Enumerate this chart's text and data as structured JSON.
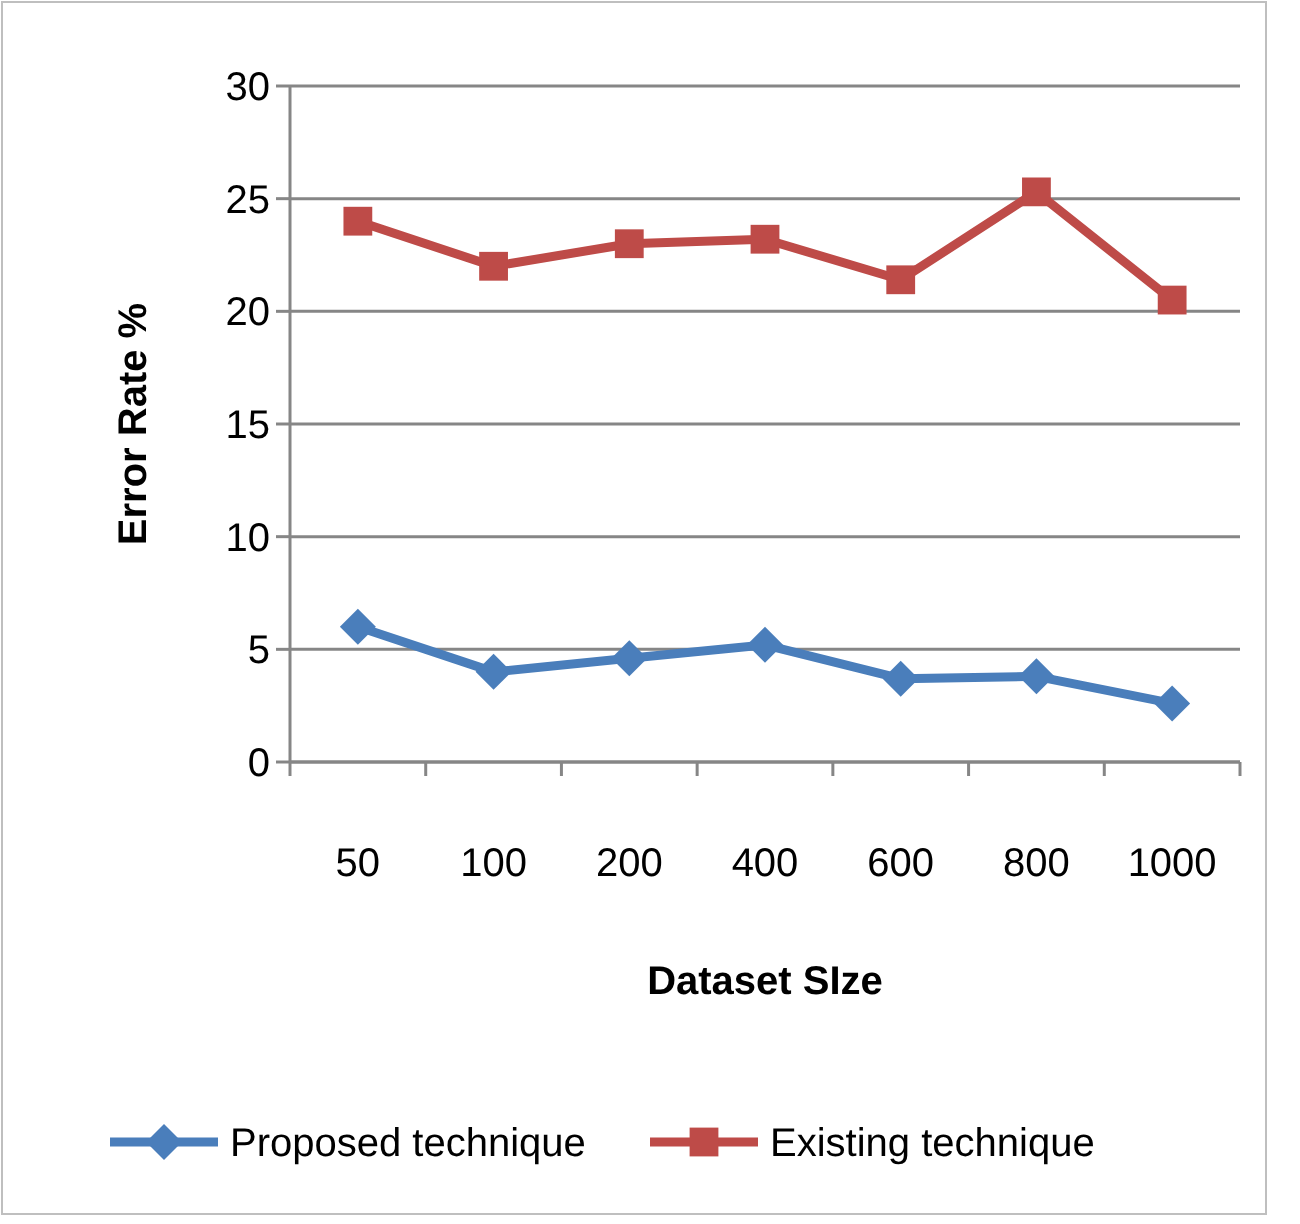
{
  "chart_data": {
    "type": "line",
    "xlabel": "Dataset SIze",
    "ylabel": "Error Rate %",
    "categories": [
      "50",
      "100",
      "200",
      "400",
      "600",
      "800",
      "1000"
    ],
    "series": [
      {
        "name": "Proposed technique",
        "color": "#4a7ebb",
        "marker": "diamond",
        "values": [
          6.0,
          4.0,
          4.6,
          5.2,
          3.7,
          3.8,
          2.6
        ]
      },
      {
        "name": "Existing technique",
        "color": "#be4b48",
        "marker": "square",
        "values": [
          24.0,
          22.0,
          23.0,
          23.2,
          21.4,
          25.3,
          20.5
        ]
      }
    ],
    "ylim": [
      0,
      30
    ],
    "yticks": [
      0,
      5,
      10,
      15,
      20,
      25,
      30
    ],
    "grid": "y",
    "legend": "bottom"
  }
}
